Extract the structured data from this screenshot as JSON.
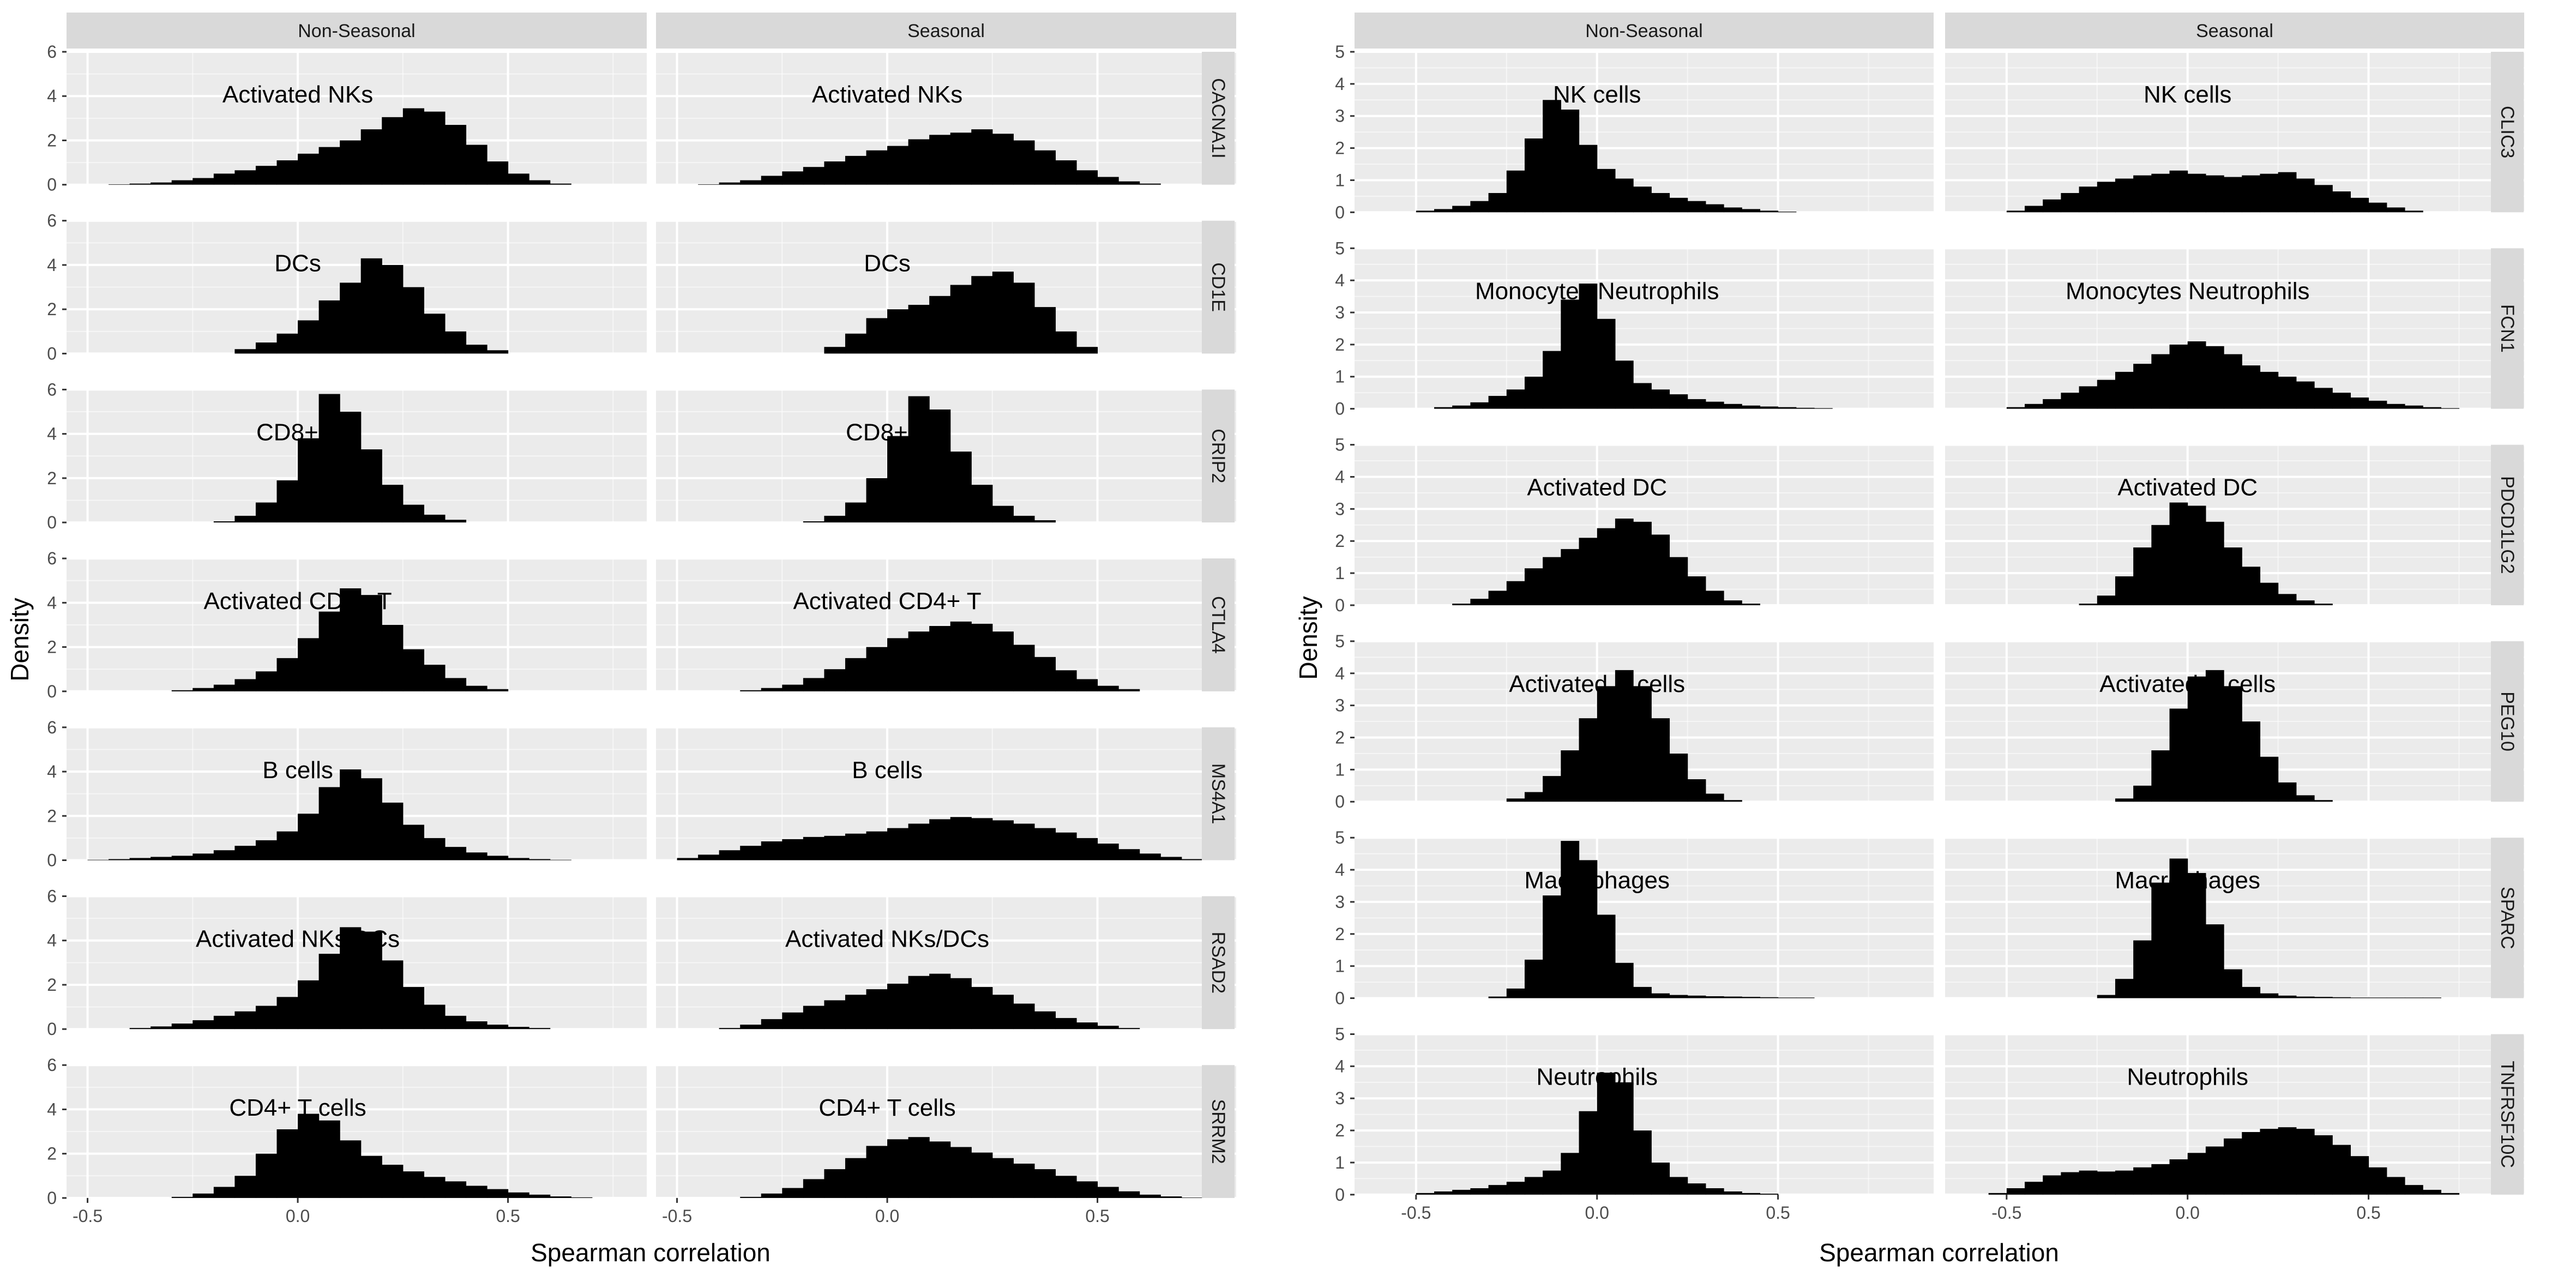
{
  "panel_colors": {
    "background": "#EBEBEB",
    "strip": "#D9D9D9",
    "gridline": "#FFFFFF",
    "bar": "#000000"
  },
  "chart_data": [
    {
      "type": "histogram",
      "xlabel": "Spearman correlation",
      "ylabel": "Density",
      "xlim": [
        -0.55,
        0.83
      ],
      "ylim": [
        0,
        6
      ],
      "y_ticks": [
        0,
        2,
        4,
        6
      ],
      "x_ticks": [
        -0.5,
        0.0,
        0.5
      ],
      "x_tick_labels": [
        "-0.5",
        "0.0",
        "0.5"
      ],
      "bin_width": 0.05,
      "grid": true,
      "columns": [
        "Non-Seasonal",
        "Seasonal"
      ],
      "rows": [
        {
          "gene": "CACNA1I",
          "label": "Activated NKs",
          "panels": [
            {
              "start": -0.45,
              "values": [
                0.02,
                0.05,
                0.1,
                0.2,
                0.3,
                0.5,
                0.65,
                0.85,
                1.1,
                1.4,
                1.7,
                2.0,
                2.5,
                3.05,
                3.45,
                3.3,
                2.7,
                1.8,
                1.05,
                0.5,
                0.2,
                0.05
              ]
            },
            {
              "start": -0.45,
              "values": [
                0.02,
                0.1,
                0.2,
                0.4,
                0.6,
                0.8,
                1.05,
                1.3,
                1.55,
                1.75,
                2.05,
                2.25,
                2.35,
                2.5,
                2.3,
                2.0,
                1.55,
                1.1,
                0.65,
                0.35,
                0.15,
                0.05
              ]
            }
          ]
        },
        {
          "gene": "CD1E",
          "label": "DCs",
          "panels": [
            {
              "start": -0.15,
              "values": [
                0.2,
                0.5,
                0.9,
                1.5,
                2.4,
                3.2,
                4.3,
                4.0,
                3.0,
                1.8,
                1.0,
                0.4,
                0.15
              ]
            },
            {
              "start": -0.15,
              "values": [
                0.3,
                0.9,
                1.6,
                2.0,
                2.2,
                2.6,
                3.1,
                3.5,
                3.7,
                3.2,
                2.1,
                1.0,
                0.3
              ]
            }
          ]
        },
        {
          "gene": "CRIP2",
          "label": "CD8+ T",
          "panels": [
            {
              "start": -0.2,
              "values": [
                0.05,
                0.3,
                0.9,
                1.9,
                3.8,
                5.8,
                5.0,
                3.3,
                1.7,
                0.8,
                0.35,
                0.12
              ]
            },
            {
              "start": -0.2,
              "values": [
                0.05,
                0.3,
                0.9,
                2.0,
                3.9,
                5.7,
                5.1,
                3.2,
                1.7,
                0.75,
                0.3,
                0.1
              ]
            }
          ]
        },
        {
          "gene": "CTLA4",
          "label": "Activated CD4+ T",
          "panels": [
            {
              "start": -0.3,
              "values": [
                0.05,
                0.15,
                0.3,
                0.55,
                0.9,
                1.5,
                2.4,
                3.6,
                4.65,
                4.35,
                3.0,
                1.9,
                1.2,
                0.6,
                0.25,
                0.1
              ]
            },
            {
              "start": -0.35,
              "values": [
                0.05,
                0.15,
                0.3,
                0.6,
                1.0,
                1.5,
                2.0,
                2.4,
                2.7,
                2.95,
                3.15,
                3.05,
                2.7,
                2.1,
                1.55,
                0.95,
                0.55,
                0.25,
                0.1
              ]
            }
          ]
        },
        {
          "gene": "MS4A1",
          "label": "B cells",
          "panels": [
            {
              "start": -0.5,
              "values": [
                0.02,
                0.05,
                0.1,
                0.15,
                0.2,
                0.3,
                0.45,
                0.65,
                0.9,
                1.3,
                2.1,
                3.3,
                4.1,
                3.7,
                2.6,
                1.6,
                1.0,
                0.6,
                0.35,
                0.2,
                0.1,
                0.05,
                0.02
              ]
            },
            {
              "start": -0.5,
              "values": [
                0.1,
                0.25,
                0.45,
                0.65,
                0.85,
                0.95,
                1.05,
                1.1,
                1.2,
                1.3,
                1.45,
                1.65,
                1.85,
                1.95,
                1.9,
                1.8,
                1.65,
                1.45,
                1.25,
                1.0,
                0.75,
                0.5,
                0.3,
                0.15,
                0.05
              ]
            }
          ]
        },
        {
          "gene": "RSAD2",
          "label": "Activated NKs/DCs",
          "panels": [
            {
              "start": -0.4,
              "values": [
                0.05,
                0.12,
                0.25,
                0.4,
                0.6,
                0.8,
                1.05,
                1.45,
                2.2,
                3.4,
                4.6,
                4.4,
                3.1,
                1.9,
                1.1,
                0.6,
                0.35,
                0.2,
                0.1,
                0.05
              ]
            },
            {
              "start": -0.4,
              "values": [
                0.05,
                0.2,
                0.45,
                0.75,
                1.05,
                1.3,
                1.55,
                1.8,
                2.05,
                2.4,
                2.5,
                2.3,
                1.9,
                1.55,
                1.15,
                0.8,
                0.5,
                0.3,
                0.15,
                0.05
              ]
            }
          ]
        },
        {
          "gene": "SRRM2",
          "label": "CD4+ T cells",
          "panels": [
            {
              "start": -0.3,
              "values": [
                0.05,
                0.2,
                0.5,
                1.0,
                2.0,
                3.1,
                3.8,
                3.5,
                2.6,
                1.9,
                1.5,
                1.2,
                0.95,
                0.75,
                0.55,
                0.4,
                0.25,
                0.15,
                0.07,
                0.03
              ]
            },
            {
              "start": -0.35,
              "values": [
                0.05,
                0.2,
                0.45,
                0.85,
                1.3,
                1.8,
                2.35,
                2.65,
                2.75,
                2.55,
                2.3,
                2.05,
                1.8,
                1.55,
                1.3,
                1.0,
                0.75,
                0.5,
                0.3,
                0.15,
                0.07,
                0.02
              ]
            }
          ]
        }
      ]
    },
    {
      "type": "histogram",
      "xlabel": "Spearman correlation",
      "ylabel": "Density",
      "xlim": [
        -0.67,
        0.93
      ],
      "ylim": [
        0,
        5
      ],
      "y_ticks": [
        0,
        1,
        2,
        3,
        4,
        5
      ],
      "x_ticks": [
        -0.5,
        0.0,
        0.5
      ],
      "x_tick_labels": [
        "-0.5",
        "0.0",
        "0.5"
      ],
      "bin_width": 0.05,
      "grid": true,
      "columns": [
        "Non-Seasonal",
        "Seasonal"
      ],
      "rows": [
        {
          "gene": "CLIC3",
          "label": "NK cells",
          "panels": [
            {
              "start": -0.5,
              "values": [
                0.05,
                0.1,
                0.2,
                0.35,
                0.6,
                1.3,
                2.3,
                3.5,
                3.2,
                2.1,
                1.35,
                1.05,
                0.8,
                0.6,
                0.45,
                0.35,
                0.25,
                0.15,
                0.1,
                0.05,
                0.02
              ]
            },
            {
              "start": -0.5,
              "values": [
                0.05,
                0.2,
                0.4,
                0.6,
                0.8,
                0.95,
                1.05,
                1.15,
                1.2,
                1.3,
                1.2,
                1.15,
                1.1,
                1.15,
                1.2,
                1.25,
                1.05,
                0.85,
                0.65,
                0.45,
                0.3,
                0.15,
                0.05
              ]
            }
          ]
        },
        {
          "gene": "FCN1",
          "label": "Monocytes Neutrophils",
          "panels": [
            {
              "start": -0.45,
              "values": [
                0.05,
                0.1,
                0.2,
                0.4,
                0.6,
                1.0,
                1.8,
                3.4,
                3.9,
                2.8,
                1.5,
                0.8,
                0.6,
                0.45,
                0.3,
                0.22,
                0.15,
                0.1,
                0.07,
                0.05,
                0.03,
                0.02
              ]
            },
            {
              "start": -0.5,
              "values": [
                0.05,
                0.15,
                0.3,
                0.5,
                0.7,
                0.9,
                1.15,
                1.4,
                1.7,
                2.0,
                2.1,
                1.95,
                1.7,
                1.35,
                1.15,
                1.0,
                0.85,
                0.65,
                0.5,
                0.35,
                0.25,
                0.15,
                0.1,
                0.05,
                0.02
              ]
            }
          ]
        },
        {
          "gene": "PDCD1LG2",
          "label": "Activated DC",
          "panels": [
            {
              "start": -0.4,
              "values": [
                0.05,
                0.2,
                0.45,
                0.75,
                1.15,
                1.5,
                1.75,
                2.1,
                2.4,
                2.7,
                2.6,
                2.2,
                1.5,
                0.9,
                0.45,
                0.15,
                0.05
              ]
            },
            {
              "start": -0.3,
              "values": [
                0.05,
                0.3,
                0.9,
                1.8,
                2.5,
                3.2,
                3.1,
                2.6,
                1.8,
                1.2,
                0.7,
                0.35,
                0.15,
                0.05
              ]
            }
          ]
        },
        {
          "gene": "PEG10",
          "label": "Activated B cells",
          "panels": [
            {
              "start": -0.25,
              "values": [
                0.1,
                0.3,
                0.8,
                1.6,
                2.6,
                3.6,
                4.1,
                3.6,
                2.6,
                1.5,
                0.7,
                0.25,
                0.05
              ]
            },
            {
              "start": -0.2,
              "values": [
                0.1,
                0.5,
                1.6,
                2.9,
                3.9,
                4.1,
                3.6,
                2.5,
                1.4,
                0.6,
                0.2,
                0.05
              ]
            }
          ]
        },
        {
          "gene": "SPARC",
          "label": "Macrophages",
          "panels": [
            {
              "start": -0.3,
              "values": [
                0.05,
                0.3,
                1.2,
                3.2,
                4.9,
                4.3,
                2.6,
                1.1,
                0.35,
                0.15,
                0.1,
                0.08,
                0.06,
                0.05,
                0.04,
                0.03,
                0.02,
                0.02
              ]
            },
            {
              "start": -0.25,
              "values": [
                0.1,
                0.6,
                1.8,
                3.6,
                4.35,
                3.9,
                2.3,
                0.9,
                0.35,
                0.15,
                0.08,
                0.05,
                0.04,
                0.03,
                0.02,
                0.02,
                0.02,
                0.02,
                0.02
              ]
            }
          ]
        },
        {
          "gene": "TNFRSF10C",
          "label": "Neutrophils",
          "panels": [
            {
              "start": -0.5,
              "values": [
                0.05,
                0.1,
                0.15,
                0.2,
                0.3,
                0.4,
                0.55,
                0.75,
                1.3,
                2.6,
                3.8,
                3.5,
                2.0,
                1.0,
                0.55,
                0.35,
                0.2,
                0.1,
                0.05,
                0.03
              ]
            },
            {
              "start": -0.55,
              "values": [
                0.05,
                0.2,
                0.4,
                0.6,
                0.7,
                0.75,
                0.72,
                0.75,
                0.85,
                0.95,
                1.1,
                1.3,
                1.5,
                1.75,
                1.95,
                2.05,
                2.1,
                2.05,
                1.85,
                1.55,
                1.2,
                0.85,
                0.55,
                0.3,
                0.15,
                0.05
              ]
            }
          ]
        }
      ]
    }
  ]
}
